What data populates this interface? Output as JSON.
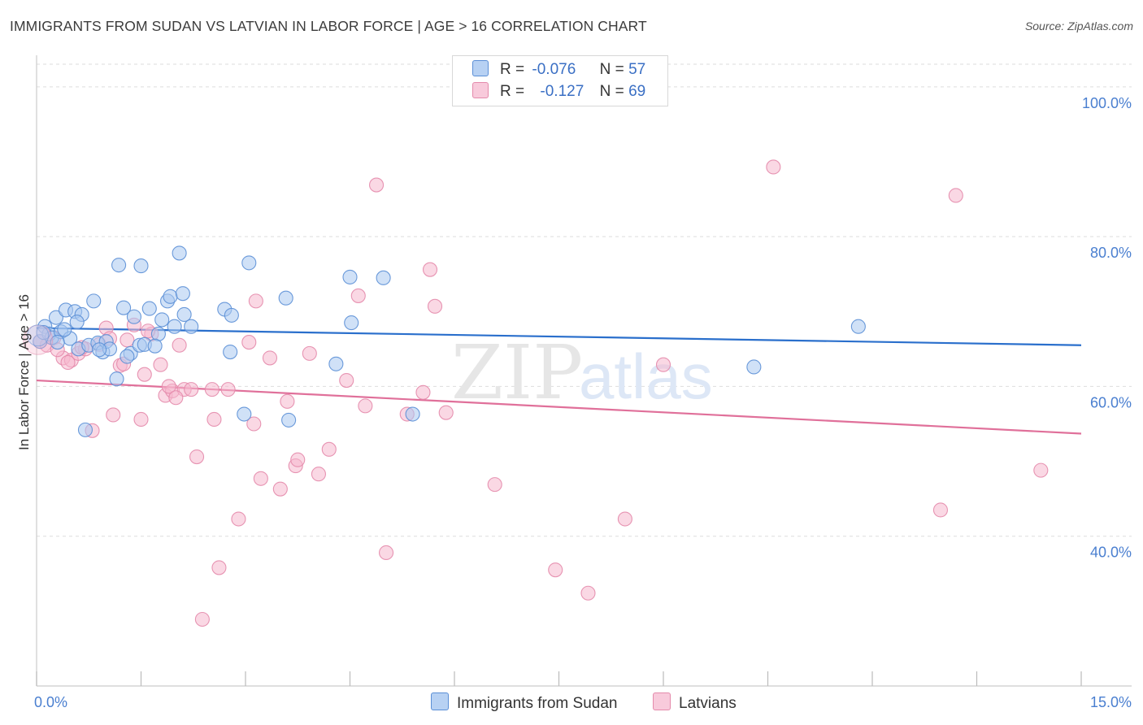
{
  "title": "IMMIGRANTS FROM SUDAN VS LATVIAN IN LABOR FORCE | AGE > 16 CORRELATION CHART",
  "source": "Source: ZipAtlas.com",
  "watermark": {
    "zip": "ZIP",
    "atlas": "atlas"
  },
  "legend": {
    "r_label": "R =",
    "n_label": "N =",
    "rows": [
      {
        "r": "-0.076",
        "n": "57"
      },
      {
        "r": "-0.127",
        "n": "69"
      }
    ]
  },
  "bottom_legend": [
    "Immigrants from Sudan",
    "Latvians"
  ],
  "x_tick_left": "0.0%",
  "x_tick_right": "15.0%",
  "colors": {
    "blue_fill": "#a9c8f0",
    "blue_stroke": "#5b8fd6",
    "blue_line": "#2a6fcc",
    "pink_fill": "#f5b8cd",
    "pink_stroke": "#e48aab",
    "pink_line": "#e0709a",
    "grid": "#dddddd",
    "axis_text": "#4a7fd0"
  },
  "chart_data": {
    "type": "scatter",
    "title": "IMMIGRANTS FROM SUDAN VS LATVIAN IN LABOR FORCE | AGE > 16 CORRELATION CHART",
    "xlabel": "",
    "ylabel": "In Labor Force | Age > 16",
    "xlim": [
      0,
      15
    ],
    "ylim": [
      20,
      104
    ],
    "y_ticks": [
      {
        "value": 100,
        "label": "100.0%"
      },
      {
        "value": 80,
        "label": "80.0%"
      },
      {
        "value": 60,
        "label": "60.0%"
      },
      {
        "value": 40,
        "label": "40.0%"
      }
    ],
    "grid": true,
    "legend_position": "top-center",
    "series": [
      {
        "name": "Immigrants from Sudan",
        "r": -0.076,
        "n": 57,
        "trend": {
          "x0": 0,
          "y0": 67.8,
          "x1": 15,
          "y1": 65.5
        },
        "points": [
          [
            0.05,
            66.0
          ],
          [
            0.12,
            68.0
          ],
          [
            0.18,
            67.0
          ],
          [
            0.22,
            66.5
          ],
          [
            0.28,
            69.2
          ],
          [
            0.35,
            67.3
          ],
          [
            0.42,
            70.2
          ],
          [
            0.48,
            66.4
          ],
          [
            0.55,
            70.0
          ],
          [
            0.6,
            65.0
          ],
          [
            0.65,
            69.6
          ],
          [
            0.7,
            54.2
          ],
          [
            0.75,
            65.5
          ],
          [
            0.82,
            71.4
          ],
          [
            0.88,
            65.8
          ],
          [
            0.95,
            64.6
          ],
          [
            1.0,
            66.0
          ],
          [
            1.05,
            65.0
          ],
          [
            1.15,
            61.0
          ],
          [
            1.25,
            70.5
          ],
          [
            1.35,
            64.4
          ],
          [
            1.4,
            69.3
          ],
          [
            1.48,
            65.5
          ],
          [
            1.55,
            65.6
          ],
          [
            1.62,
            70.4
          ],
          [
            1.75,
            67.0
          ],
          [
            1.8,
            68.9
          ],
          [
            1.88,
            71.4
          ],
          [
            1.92,
            72.0
          ],
          [
            1.98,
            68.0
          ],
          [
            2.05,
            77.8
          ],
          [
            2.12,
            69.6
          ],
          [
            2.1,
            72.4
          ],
          [
            2.22,
            68.0
          ],
          [
            1.18,
            76.2
          ],
          [
            1.5,
            76.1
          ],
          [
            2.7,
            70.3
          ],
          [
            2.8,
            69.5
          ],
          [
            2.78,
            64.6
          ],
          [
            2.98,
            56.3
          ],
          [
            3.05,
            76.5
          ],
          [
            3.58,
            71.8
          ],
          [
            3.62,
            55.5
          ],
          [
            4.3,
            63.0
          ],
          [
            4.5,
            74.6
          ],
          [
            4.52,
            68.5
          ],
          [
            4.98,
            74.5
          ],
          [
            5.4,
            56.3
          ],
          [
            10.3,
            62.6
          ],
          [
            11.8,
            68.0
          ],
          [
            0.1,
            67.2
          ],
          [
            0.3,
            65.9
          ],
          [
            0.4,
            67.6
          ],
          [
            0.58,
            68.6
          ],
          [
            0.9,
            64.9
          ],
          [
            1.3,
            64.0
          ],
          [
            1.7,
            65.4
          ]
        ]
      },
      {
        "name": "Latvians",
        "r": -0.127,
        "n": 69,
        "trend": {
          "x0": 0,
          "y0": 60.8,
          "x1": 15,
          "y1": 53.7
        },
        "points": [
          [
            0.05,
            66.0
          ],
          [
            0.15,
            65.5
          ],
          [
            0.25,
            66.5
          ],
          [
            0.38,
            63.8
          ],
          [
            0.5,
            63.5
          ],
          [
            0.6,
            64.4
          ],
          [
            0.7,
            65.0
          ],
          [
            0.8,
            54.1
          ],
          [
            0.9,
            65.6
          ],
          [
            1.0,
            67.8
          ],
          [
            1.1,
            56.2
          ],
          [
            1.2,
            62.8
          ],
          [
            1.3,
            66.2
          ],
          [
            1.4,
            68.2
          ],
          [
            1.5,
            55.6
          ],
          [
            1.55,
            61.6
          ],
          [
            1.65,
            67.0
          ],
          [
            1.78,
            62.9
          ],
          [
            1.85,
            58.8
          ],
          [
            1.95,
            59.4
          ],
          [
            2.05,
            65.5
          ],
          [
            2.12,
            59.6
          ],
          [
            2.22,
            59.6
          ],
          [
            2.3,
            50.6
          ],
          [
            2.52,
            59.6
          ],
          [
            2.55,
            55.6
          ],
          [
            2.62,
            35.8
          ],
          [
            2.38,
            28.9
          ],
          [
            2.75,
            59.6
          ],
          [
            2.9,
            42.3
          ],
          [
            3.05,
            65.9
          ],
          [
            3.12,
            55.0
          ],
          [
            3.15,
            71.4
          ],
          [
            3.22,
            47.7
          ],
          [
            3.35,
            63.8
          ],
          [
            3.5,
            46.3
          ],
          [
            3.6,
            58.0
          ],
          [
            3.72,
            49.4
          ],
          [
            3.75,
            50.2
          ],
          [
            3.92,
            64.4
          ],
          [
            4.05,
            48.3
          ],
          [
            4.2,
            51.6
          ],
          [
            4.45,
            60.8
          ],
          [
            4.62,
            72.1
          ],
          [
            4.72,
            57.4
          ],
          [
            4.88,
            86.9
          ],
          [
            5.02,
            37.8
          ],
          [
            5.32,
            56.3
          ],
          [
            5.55,
            59.2
          ],
          [
            5.65,
            75.6
          ],
          [
            5.72,
            70.7
          ],
          [
            5.88,
            56.5
          ],
          [
            6.58,
            46.9
          ],
          [
            7.45,
            35.5
          ],
          [
            7.92,
            32.4
          ],
          [
            8.45,
            42.3
          ],
          [
            9.0,
            62.9
          ],
          [
            10.58,
            89.3
          ],
          [
            12.98,
            43.5
          ],
          [
            13.2,
            85.5
          ],
          [
            14.42,
            48.8
          ],
          [
            0.3,
            64.9
          ],
          [
            0.45,
            63.2
          ],
          [
            0.65,
            65.2
          ],
          [
            1.05,
            66.4
          ],
          [
            1.25,
            63.0
          ],
          [
            1.6,
            67.4
          ],
          [
            1.9,
            60.0
          ],
          [
            2.0,
            58.5
          ]
        ]
      }
    ]
  }
}
